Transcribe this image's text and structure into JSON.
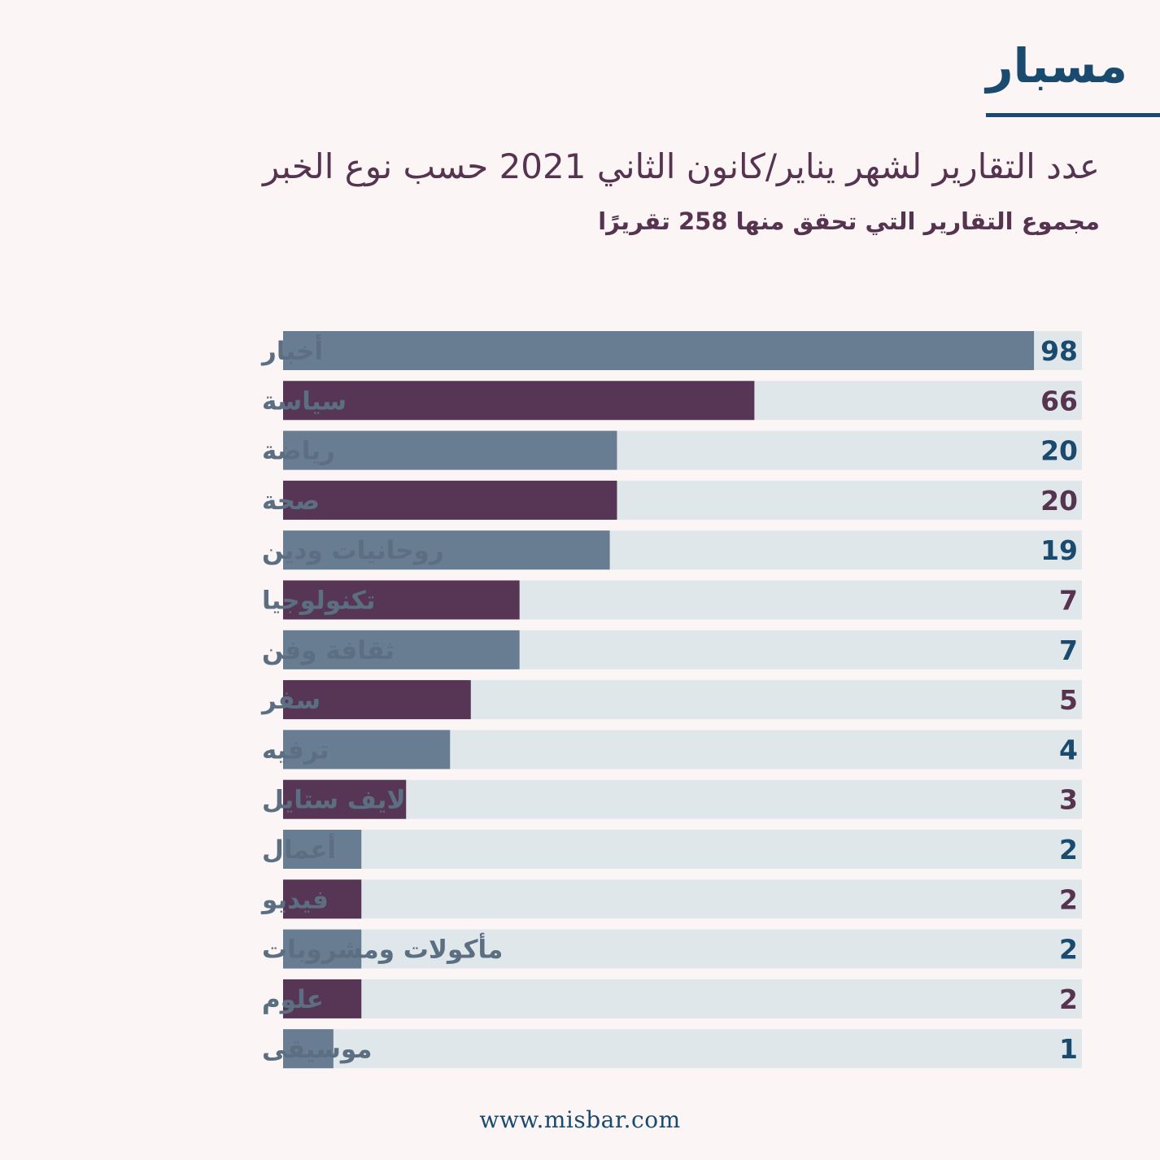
{
  "brand": {
    "logo_text": "مسبار"
  },
  "chart_data": {
    "type": "bar",
    "orientation": "horizontal",
    "title": "عدد التقارير لشهر يناير/كانون الثاني 2021 حسب نوع الخبر",
    "subtitle": "مجموع التقارير التي تحقق منها 258  تقريرًا",
    "categories": [
      "أخبار",
      "سياسة",
      "رياضة",
      "صحة",
      "روحانيات ودين",
      "تكنولوجيا",
      "ثقافة وفن",
      "سفر",
      "ترفيه",
      "لايف ستايل",
      "أعمال",
      "فيديو",
      "مأكولات ومشروبات",
      "علوم",
      "موسيقى"
    ],
    "values": [
      98,
      66,
      20,
      20,
      19,
      7,
      7,
      5,
      4,
      3,
      2,
      2,
      2,
      2,
      1
    ],
    "value_labels": [
      "98",
      "66",
      "20",
      "20",
      "19",
      "7",
      "7",
      "5",
      "4",
      "3",
      "2",
      "2",
      "2",
      "2",
      "1"
    ],
    "bar_fill_fraction": [
      0.94,
      0.59,
      0.418,
      0.418,
      0.409,
      0.296,
      0.296,
      0.235,
      0.209,
      0.154,
      0.098,
      0.098,
      0.098,
      0.098,
      0.063
    ],
    "colors": {
      "primary": "#687d91",
      "secondary": "#573555",
      "track": "#dfe7ea",
      "label": "#5c6f82",
      "value_primary": "#1a4a6e",
      "value_secondary": "#56334f"
    }
  },
  "footer": {
    "url": "www.misbar.com"
  }
}
